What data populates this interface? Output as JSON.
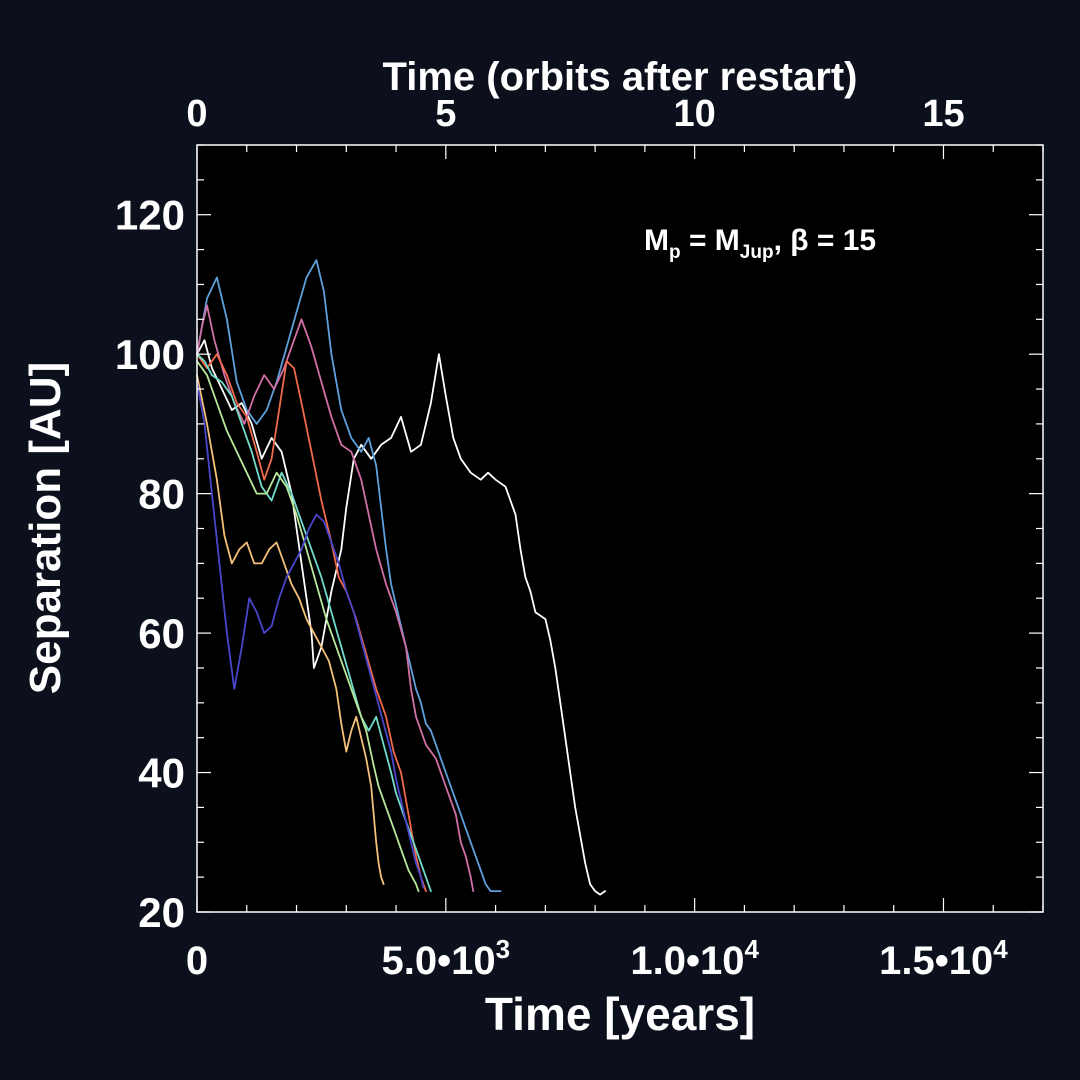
{
  "chart_data": {
    "type": "line",
    "title": "",
    "xlabel": "Time [years]",
    "ylabel": "Separation [AU]",
    "top_xlabel": "Time (orbits after restart)",
    "annotation": {
      "text_main": "M",
      "sub1": "p",
      "mid": " = M",
      "sub2": "Jup",
      "tail": ", β = 15"
    },
    "xlim": [
      0,
      17000
    ],
    "ylim": [
      20,
      130
    ],
    "x_ticks": [
      {
        "value": 0,
        "label": "0"
      },
      {
        "value": 5000,
        "label": "5.0•10",
        "exp": "3"
      },
      {
        "value": 10000,
        "label": "1.0•10",
        "exp": "4"
      },
      {
        "value": 15000,
        "label": "1.5•10",
        "exp": "4"
      }
    ],
    "top_ticks": [
      {
        "value": 0,
        "label": "0"
      },
      {
        "value": 5000,
        "label": "5"
      },
      {
        "value": 10000,
        "label": "10"
      },
      {
        "value": 15000,
        "label": "15"
      }
    ],
    "y_ticks": [
      20,
      40,
      60,
      80,
      100,
      120
    ],
    "grid": false,
    "series": [
      {
        "color": "#ffffff",
        "points": [
          [
            0,
            100
          ],
          [
            150,
            102
          ],
          [
            300,
            98
          ],
          [
            500,
            95
          ],
          [
            700,
            92
          ],
          [
            900,
            93
          ],
          [
            1100,
            90
          ],
          [
            1300,
            85
          ],
          [
            1500,
            88
          ],
          [
            1700,
            86
          ],
          [
            1900,
            80
          ],
          [
            2100,
            70
          ],
          [
            2300,
            60
          ],
          [
            2350,
            55
          ],
          [
            2500,
            58
          ],
          [
            2700,
            66
          ],
          [
            2900,
            72
          ],
          [
            3000,
            78
          ],
          [
            3150,
            85
          ],
          [
            3300,
            87
          ],
          [
            3500,
            85
          ],
          [
            3700,
            87
          ],
          [
            3900,
            88
          ],
          [
            4100,
            91
          ],
          [
            4300,
            86
          ],
          [
            4500,
            87
          ],
          [
            4700,
            93
          ],
          [
            4860,
            100
          ],
          [
            5000,
            94
          ],
          [
            5150,
            88
          ],
          [
            5300,
            85
          ],
          [
            5500,
            83
          ],
          [
            5700,
            82
          ],
          [
            5850,
            83
          ],
          [
            6000,
            82
          ],
          [
            6200,
            81
          ],
          [
            6400,
            77
          ],
          [
            6500,
            72
          ],
          [
            6600,
            68
          ],
          [
            6700,
            66
          ],
          [
            6800,
            63
          ],
          [
            7000,
            62
          ],
          [
            7100,
            59
          ],
          [
            7200,
            55
          ],
          [
            7300,
            50
          ],
          [
            7400,
            45
          ],
          [
            7500,
            40
          ],
          [
            7600,
            35
          ],
          [
            7700,
            31
          ],
          [
            7800,
            27
          ],
          [
            7900,
            24
          ],
          [
            8000,
            23
          ],
          [
            8100,
            22.5
          ],
          [
            8200,
            23
          ]
        ]
      },
      {
        "color": "#5fa0dc",
        "points": [
          [
            0,
            100
          ],
          [
            200,
            108
          ],
          [
            400,
            111
          ],
          [
            600,
            105
          ],
          [
            800,
            96
          ],
          [
            1000,
            92
          ],
          [
            1200,
            90
          ],
          [
            1400,
            92
          ],
          [
            1600,
            96
          ],
          [
            1800,
            101
          ],
          [
            2000,
            106
          ],
          [
            2200,
            111
          ],
          [
            2400,
            113.5
          ],
          [
            2550,
            109
          ],
          [
            2700,
            100
          ],
          [
            2900,
            92
          ],
          [
            3100,
            88
          ],
          [
            3300,
            86
          ],
          [
            3450,
            88
          ],
          [
            3600,
            84
          ],
          [
            3700,
            78
          ],
          [
            3800,
            72
          ],
          [
            3900,
            67
          ],
          [
            4000,
            64
          ],
          [
            4100,
            61
          ],
          [
            4200,
            58
          ],
          [
            4300,
            55
          ],
          [
            4400,
            52
          ],
          [
            4500,
            50
          ],
          [
            4600,
            47
          ],
          [
            4700,
            46
          ],
          [
            4800,
            44
          ],
          [
            4900,
            42
          ],
          [
            5000,
            40
          ],
          [
            5100,
            38
          ],
          [
            5200,
            36
          ],
          [
            5300,
            34
          ],
          [
            5400,
            32
          ],
          [
            5500,
            30
          ],
          [
            5600,
            28
          ],
          [
            5700,
            26
          ],
          [
            5800,
            24
          ],
          [
            5900,
            23
          ],
          [
            6100,
            23
          ]
        ]
      },
      {
        "color": "#d070a6",
        "points": [
          [
            0,
            100
          ],
          [
            100,
            104
          ],
          [
            200,
            107
          ],
          [
            350,
            102
          ],
          [
            550,
            97
          ],
          [
            750,
            93
          ],
          [
            950,
            90
          ],
          [
            1150,
            94
          ],
          [
            1350,
            97
          ],
          [
            1550,
            95
          ],
          [
            1750,
            98
          ],
          [
            1950,
            102
          ],
          [
            2100,
            105
          ],
          [
            2300,
            101
          ],
          [
            2500,
            96
          ],
          [
            2700,
            91
          ],
          [
            2900,
            87
          ],
          [
            3100,
            86
          ],
          [
            3300,
            82
          ],
          [
            3450,
            77
          ],
          [
            3600,
            72
          ],
          [
            3800,
            67
          ],
          [
            4000,
            63
          ],
          [
            4200,
            58
          ],
          [
            4300,
            52
          ],
          [
            4400,
            48
          ],
          [
            4600,
            44
          ],
          [
            4800,
            42
          ],
          [
            5000,
            38
          ],
          [
            5200,
            34
          ],
          [
            5300,
            30
          ],
          [
            5400,
            28
          ],
          [
            5500,
            25
          ],
          [
            5550,
            23
          ]
        ]
      },
      {
        "color": "#f06a4a",
        "points": [
          [
            0,
            100
          ],
          [
            200,
            98
          ],
          [
            400,
            100
          ],
          [
            600,
            97
          ],
          [
            800,
            93
          ],
          [
            1000,
            91
          ],
          [
            1200,
            86
          ],
          [
            1350,
            82
          ],
          [
            1500,
            85
          ],
          [
            1650,
            92
          ],
          [
            1800,
            99
          ],
          [
            1950,
            98
          ],
          [
            2100,
            93
          ],
          [
            2300,
            86
          ],
          [
            2500,
            79
          ],
          [
            2700,
            73
          ],
          [
            2850,
            68
          ],
          [
            3000,
            66
          ],
          [
            3200,
            62
          ],
          [
            3400,
            57
          ],
          [
            3600,
            52
          ],
          [
            3800,
            48
          ],
          [
            3950,
            43
          ],
          [
            4100,
            40
          ],
          [
            4200,
            36
          ],
          [
            4300,
            32
          ],
          [
            4400,
            28
          ],
          [
            4500,
            25
          ],
          [
            4600,
            23
          ]
        ]
      },
      {
        "color": "#f5c07a",
        "points": [
          [
            0,
            97
          ],
          [
            200,
            90
          ],
          [
            400,
            82
          ],
          [
            550,
            74
          ],
          [
            700,
            70
          ],
          [
            850,
            72
          ],
          [
            1000,
            73
          ],
          [
            1150,
            70
          ],
          [
            1300,
            70
          ],
          [
            1450,
            72
          ],
          [
            1600,
            73
          ],
          [
            1750,
            70
          ],
          [
            1900,
            67
          ],
          [
            2050,
            65
          ],
          [
            2200,
            62
          ],
          [
            2350,
            60
          ],
          [
            2500,
            58
          ],
          [
            2650,
            56
          ],
          [
            2800,
            52
          ],
          [
            2900,
            47
          ],
          [
            3000,
            43
          ],
          [
            3100,
            46
          ],
          [
            3200,
            48
          ],
          [
            3300,
            45
          ],
          [
            3400,
            42
          ],
          [
            3500,
            38
          ],
          [
            3550,
            34
          ],
          [
            3600,
            30
          ],
          [
            3650,
            27
          ],
          [
            3700,
            25
          ],
          [
            3750,
            24
          ]
        ]
      },
      {
        "color": "#72dccc",
        "points": [
          [
            0,
            100
          ],
          [
            150,
            99
          ],
          [
            300,
            97
          ],
          [
            500,
            96
          ],
          [
            700,
            94
          ],
          [
            900,
            90
          ],
          [
            1100,
            86
          ],
          [
            1300,
            81
          ],
          [
            1500,
            79
          ],
          [
            1700,
            83
          ],
          [
            1900,
            80
          ],
          [
            2100,
            76
          ],
          [
            2300,
            72
          ],
          [
            2500,
            68
          ],
          [
            2700,
            63
          ],
          [
            2900,
            58
          ],
          [
            3100,
            53
          ],
          [
            3300,
            48
          ],
          [
            3450,
            46
          ],
          [
            3600,
            48
          ],
          [
            3750,
            44
          ],
          [
            3900,
            40
          ],
          [
            4000,
            37
          ],
          [
            4150,
            34
          ],
          [
            4300,
            31
          ],
          [
            4450,
            28
          ],
          [
            4600,
            25
          ],
          [
            4700,
            23
          ]
        ]
      },
      {
        "color": "#b8e89a",
        "points": [
          [
            0,
            99
          ],
          [
            200,
            97
          ],
          [
            400,
            93
          ],
          [
            600,
            89
          ],
          [
            800,
            86
          ],
          [
            1000,
            83
          ],
          [
            1200,
            80
          ],
          [
            1400,
            80
          ],
          [
            1600,
            83
          ],
          [
            1800,
            81
          ],
          [
            2000,
            77
          ],
          [
            2200,
            72
          ],
          [
            2400,
            67
          ],
          [
            2600,
            62
          ],
          [
            2800,
            58
          ],
          [
            3000,
            54
          ],
          [
            3200,
            50
          ],
          [
            3400,
            46
          ],
          [
            3550,
            41
          ],
          [
            3650,
            38
          ],
          [
            3800,
            35
          ],
          [
            3950,
            32
          ],
          [
            4100,
            29
          ],
          [
            4250,
            26
          ],
          [
            4400,
            24
          ],
          [
            4450,
            23
          ]
        ]
      },
      {
        "color": "#4a46cc",
        "points": [
          [
            0,
            96
          ],
          [
            150,
            90
          ],
          [
            300,
            80
          ],
          [
            450,
            70
          ],
          [
            600,
            60
          ],
          [
            750,
            52
          ],
          [
            900,
            58
          ],
          [
            1050,
            65
          ],
          [
            1200,
            63
          ],
          [
            1350,
            60
          ],
          [
            1500,
            61
          ],
          [
            1650,
            65
          ],
          [
            1800,
            68
          ],
          [
            1950,
            70
          ],
          [
            2100,
            72
          ],
          [
            2250,
            75
          ],
          [
            2400,
            77
          ],
          [
            2550,
            76
          ],
          [
            2700,
            73
          ],
          [
            2850,
            70
          ],
          [
            3000,
            66
          ],
          [
            3150,
            63
          ],
          [
            3300,
            59
          ],
          [
            3450,
            55
          ],
          [
            3600,
            51
          ],
          [
            3750,
            47
          ],
          [
            3900,
            43
          ],
          [
            4000,
            39
          ],
          [
            4100,
            36
          ],
          [
            4200,
            33
          ],
          [
            4300,
            30
          ],
          [
            4400,
            27
          ],
          [
            4500,
            25
          ],
          [
            4550,
            23.5
          ]
        ]
      }
    ]
  }
}
